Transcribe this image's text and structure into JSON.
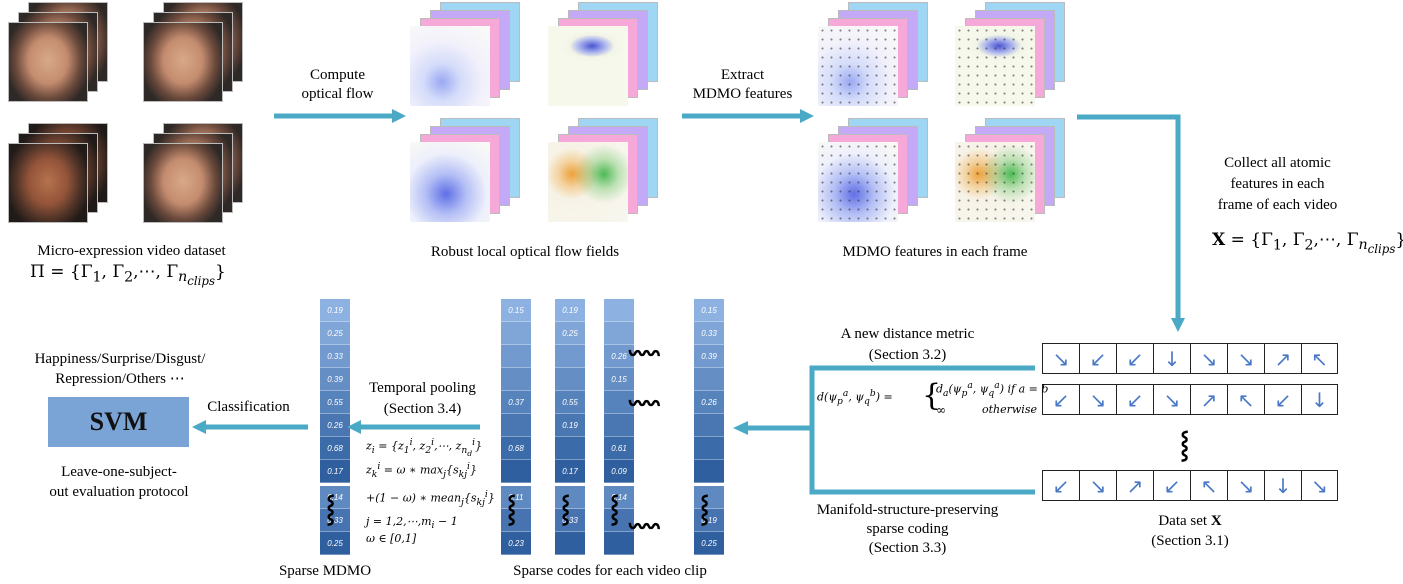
{
  "labels": {
    "dataset_title": "Micro-expression video dataset",
    "dataset_formula": "Π = {Γ₁, Γ₂,⋯, Γn_clips}",
    "compute_flow": [
      "Compute",
      "optical flow"
    ],
    "flow_fields": "Robust local optical flow fields",
    "extract": [
      "Extract",
      "MDMO features"
    ],
    "mdmo_frames": "MDMO features in each frame",
    "collect": [
      "Collect all atomic",
      "features in each",
      "frame of each video"
    ],
    "x_formula": "X = {Γ₁, Γ₂,⋯, Γn_clips}",
    "distance_title": [
      "A new distance metric",
      "(Section 3.2)"
    ],
    "distance_formula_left": "d(ψpa, ψqb) =",
    "distance_case1": "da(ψpa, ψqa) if a = b",
    "distance_case2_left": "∞",
    "distance_case2_right": "otherwise",
    "msp_coding": [
      "Manifold-structure-preserving",
      "sparse coding",
      "(Section 3.3)"
    ],
    "dataset_x": [
      "Data set X",
      "(Section 3.1)"
    ],
    "temporal_pooling": [
      "Temporal pooling",
      "(Section 3.4)"
    ],
    "classification": "Classification",
    "classes": [
      "Happiness/Surprise/Disgust/",
      "Repression/Others ⋯"
    ],
    "svm": "SVM",
    "protocol": [
      "Leave-one-subject-",
      "out evaluation protocol"
    ],
    "sparse_mdmo": "Sparse MDMO",
    "sparse_codes": "Sparse codes for each video clip",
    "pool_eq": [
      "zᵢ = {z₁ⁱ, z₂ⁱ,⋯, z_ndⁱ}",
      "zₖⁱ = ω ∗ max_j {sₖⱼⁱ}",
      "+(1 − ω) ∗ mean_j {sₖⱼⁱ}",
      "j = 1,2,⋯,mᵢ − 1",
      "ω ∈ [0,1]"
    ]
  },
  "sparse_mdmo_values": [
    "0.19",
    "0.25",
    "0.33",
    "0.39",
    "0.55",
    "0.26",
    "0.68",
    "0.17"
  ],
  "sparse_mdmo_bottom": [
    "0.14",
    "0.33",
    "0.25"
  ],
  "code_columns": [
    {
      "top": [
        "0.15",
        "",
        "",
        "",
        "0.37",
        "",
        "0.68",
        ""
      ],
      "bottom": [
        "0.11",
        "",
        "0.23"
      ]
    },
    {
      "top": [
        "0.19",
        "0.25",
        "",
        "",
        "0.55",
        "0.19",
        "",
        "0.17"
      ],
      "bottom": [
        "",
        "0.33",
        ""
      ]
    },
    {
      "top": [
        "",
        "",
        "0.26",
        "0.15",
        "",
        "",
        "0.61",
        "0.09"
      ],
      "bottom": [
        "0.14",
        "",
        ""
      ]
    },
    {
      "top": [
        "0.15",
        "0.33",
        "0.39",
        "",
        "0.26",
        "",
        "",
        ""
      ],
      "bottom": [
        "",
        "0.19",
        "0.25"
      ]
    }
  ],
  "dataset_rows": [
    [
      "↘",
      "↙",
      "↙",
      "↓",
      "↘",
      "↘",
      "↗",
      "↖"
    ],
    [
      "↙",
      "↘",
      "↙",
      "↘",
      "↗",
      "↖",
      "↙",
      "↓"
    ],
    [
      "↙",
      "↘",
      "↗",
      "↙",
      "↖",
      "↘",
      "↓",
      "↘"
    ]
  ],
  "colors": {
    "arrow": "#4aa9c4",
    "svm": "#7aa4d6",
    "cell_light": "#8db2e2",
    "cell_dark": "#2f5f9f"
  }
}
